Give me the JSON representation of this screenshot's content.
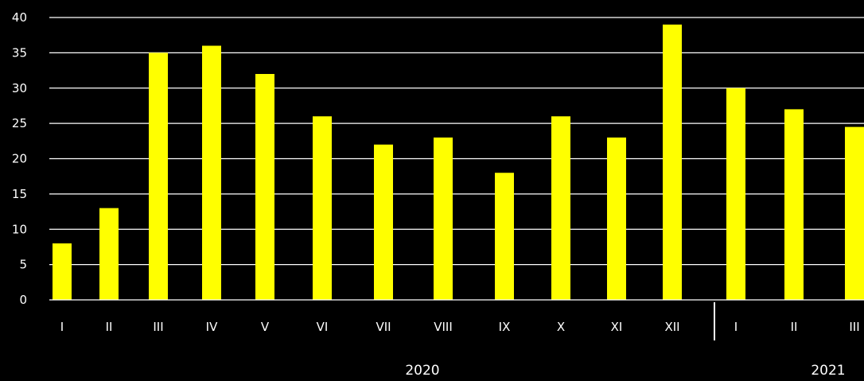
{
  "chart_data": {
    "type": "bar",
    "title": "",
    "xlabel": "",
    "ylabel": "",
    "ylim": [
      0,
      40
    ],
    "yticks": [
      0,
      5,
      10,
      15,
      20,
      25,
      30,
      35,
      40
    ],
    "grid": true,
    "categories": [
      "I",
      "II",
      "III",
      "IV",
      "V",
      "VI",
      "VII",
      "VIII",
      "IX",
      "X",
      "XI",
      "XII",
      "I",
      "II",
      "III"
    ],
    "values": [
      8,
      13,
      35,
      36,
      32,
      26,
      22,
      23,
      18,
      26,
      23,
      39,
      30,
      27,
      24.5
    ],
    "groups": [
      {
        "label": "2020",
        "count": 12
      },
      {
        "label": "2021",
        "count": 3
      }
    ],
    "colors": {
      "bar": "#ffff00",
      "background": "#000000",
      "grid": "#ffffff",
      "text": "#ffffff"
    }
  }
}
